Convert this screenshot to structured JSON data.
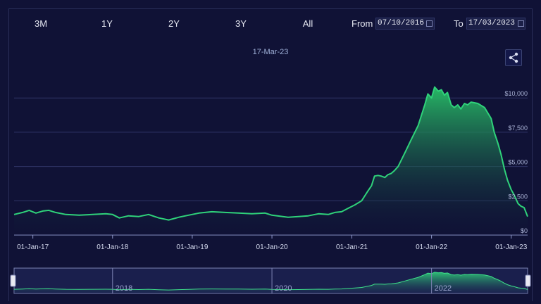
{
  "toolbar": {
    "ranges": [
      "3M",
      "1Y",
      "2Y",
      "3Y",
      "All"
    ],
    "from_label": "From",
    "from_value": "07/10/2016",
    "to_label": "To",
    "to_value": "17/03/2023"
  },
  "hover_date": "17-Mar-23",
  "icons": {
    "share": "share-icon",
    "calendar": "calendar-icon",
    "navigator_handle": "drag-handle-icon"
  },
  "colors": {
    "background": "#101236",
    "line": "#2fd27a",
    "area_top": "#27b865",
    "area_bottom": "#101236",
    "grid": "#2f3566"
  },
  "chart_data": {
    "type": "area",
    "y_ticks": [
      "$0",
      "$2,500",
      "$5,000",
      "$7,500",
      "$10,000"
    ],
    "ylim": [
      0,
      11500
    ],
    "x_ticks": [
      "01-Jan-17",
      "01-Jan-18",
      "01-Jan-19",
      "01-Jan-20",
      "01-Jan-21",
      "01-Jan-22",
      "01-Jan-23"
    ],
    "xlim": [
      "2016-10-07",
      "2023-03-17"
    ],
    "grid": true,
    "series": [
      {
        "points": [
          [
            "2016-10-07",
            1500
          ],
          [
            "2016-11-15",
            1650
          ],
          [
            "2016-12-15",
            1800
          ],
          [
            "2017-01-15",
            1600
          ],
          [
            "2017-02-15",
            1750
          ],
          [
            "2017-03-15",
            1800
          ],
          [
            "2017-04-15",
            1650
          ],
          [
            "2017-06-01",
            1500
          ],
          [
            "2017-08-01",
            1450
          ],
          [
            "2017-10-01",
            1500
          ],
          [
            "2017-12-01",
            1550
          ],
          [
            "2018-01-01",
            1500
          ],
          [
            "2018-02-01",
            1250
          ],
          [
            "2018-03-15",
            1400
          ],
          [
            "2018-05-01",
            1350
          ],
          [
            "2018-06-15",
            1500
          ],
          [
            "2018-08-01",
            1250
          ],
          [
            "2018-09-15",
            1100
          ],
          [
            "2018-11-01",
            1300
          ],
          [
            "2018-12-15",
            1450
          ],
          [
            "2019-02-01",
            1600
          ],
          [
            "2019-04-01",
            1700
          ],
          [
            "2019-06-01",
            1650
          ],
          [
            "2019-08-01",
            1600
          ],
          [
            "2019-10-01",
            1550
          ],
          [
            "2019-12-01",
            1600
          ],
          [
            "2020-01-01",
            1450
          ],
          [
            "2020-03-15",
            1300
          ],
          [
            "2020-05-01",
            1350
          ],
          [
            "2020-06-15",
            1400
          ],
          [
            "2020-08-01",
            1550
          ],
          [
            "2020-09-15",
            1500
          ],
          [
            "2020-10-15",
            1650
          ],
          [
            "2020-11-15",
            1700
          ],
          [
            "2020-12-15",
            1950
          ],
          [
            "2021-01-15",
            2200
          ],
          [
            "2021-02-15",
            2500
          ],
          [
            "2021-03-15",
            3200
          ],
          [
            "2021-04-01",
            3600
          ],
          [
            "2021-04-15",
            4300
          ],
          [
            "2021-05-01",
            4350
          ],
          [
            "2021-05-15",
            4300
          ],
          [
            "2021-06-01",
            4200
          ],
          [
            "2021-06-15",
            4400
          ],
          [
            "2021-07-01",
            4500
          ],
          [
            "2021-07-15",
            4700
          ],
          [
            "2021-08-01",
            5000
          ],
          [
            "2021-09-01",
            6000
          ],
          [
            "2021-10-01",
            7000
          ],
          [
            "2021-11-01",
            8000
          ],
          [
            "2021-12-01",
            9500
          ],
          [
            "2021-12-15",
            10300
          ],
          [
            "2022-01-01",
            10000
          ],
          [
            "2022-01-15",
            10800
          ],
          [
            "2022-02-01",
            10500
          ],
          [
            "2022-02-15",
            10600
          ],
          [
            "2022-03-01",
            10200
          ],
          [
            "2022-03-15",
            10400
          ],
          [
            "2022-04-01",
            9500
          ],
          [
            "2022-04-15",
            9300
          ],
          [
            "2022-05-01",
            9500
          ],
          [
            "2022-05-15",
            9200
          ],
          [
            "2022-06-01",
            9600
          ],
          [
            "2022-06-15",
            9500
          ],
          [
            "2022-07-01",
            9700
          ],
          [
            "2022-08-01",
            9600
          ],
          [
            "2022-09-01",
            9300
          ],
          [
            "2022-10-01",
            8500
          ],
          [
            "2022-10-15",
            7500
          ],
          [
            "2022-11-01",
            6700
          ],
          [
            "2022-11-15",
            5900
          ],
          [
            "2022-12-01",
            4800
          ],
          [
            "2022-12-15",
            4000
          ],
          [
            "2023-01-01",
            3300
          ],
          [
            "2023-01-15",
            2900
          ],
          [
            "2023-02-01",
            2300
          ],
          [
            "2023-02-15",
            2100
          ],
          [
            "2023-03-01",
            2000
          ],
          [
            "2023-03-17",
            1350
          ]
        ]
      }
    ],
    "navigator": {
      "xlim": [
        "2016-10-07",
        "2023-03-17"
      ],
      "labels": [
        "2018",
        "2020",
        "2022"
      ]
    }
  }
}
